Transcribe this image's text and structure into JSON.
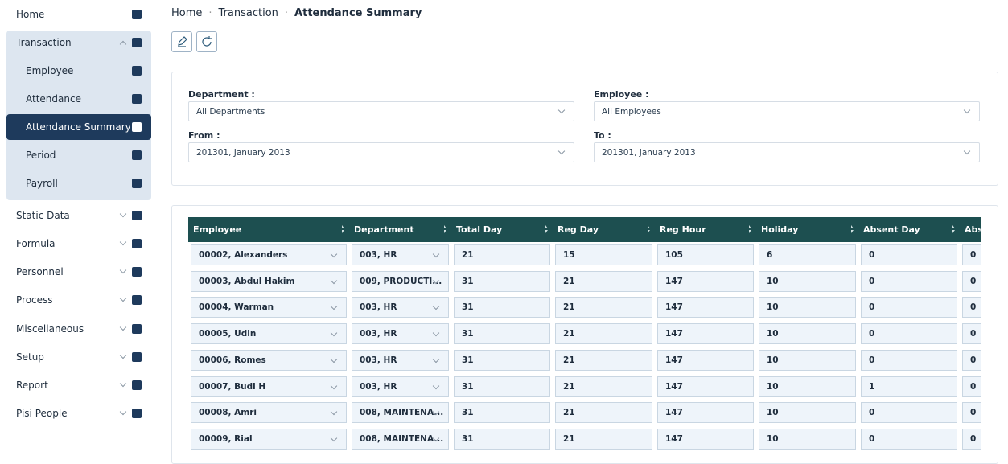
{
  "sidebar": {
    "items": [
      {
        "label": "Home"
      },
      {
        "label": "Transaction",
        "children": [
          {
            "label": "Employee"
          },
          {
            "label": "Attendance"
          },
          {
            "label": "Attendance Summary"
          },
          {
            "label": "Period"
          },
          {
            "label": "Payroll"
          }
        ]
      },
      {
        "label": "Static Data"
      },
      {
        "label": "Formula"
      },
      {
        "label": "Personnel"
      },
      {
        "label": "Process"
      },
      {
        "label": "Miscellaneous"
      },
      {
        "label": "Setup"
      },
      {
        "label": "Report"
      },
      {
        "label": "Pisi People"
      }
    ]
  },
  "breadcrumb": [
    "Home",
    "Transaction",
    "Attendance Summary"
  ],
  "filters": [
    {
      "label": "Department :",
      "value": "All Departments"
    },
    {
      "label": "Employee :",
      "value": "All Employees"
    },
    {
      "label": "From :",
      "value": "201301, January 2013"
    },
    {
      "label": "To :",
      "value": "201301, January 2013"
    }
  ],
  "table": {
    "columns": [
      "Employee",
      "Department",
      "Total Day",
      "Reg Day",
      "Reg Hour",
      "Holiday",
      "Absent Day",
      "Abs"
    ],
    "rows": [
      [
        "00002, Alexanders",
        "003, HR",
        21,
        15,
        105,
        6,
        0,
        0
      ],
      [
        "00003, Abdul Hakim",
        "009, PRODUCTI...",
        31,
        21,
        147,
        10,
        0,
        0
      ],
      [
        "00004, Warman",
        "003, HR",
        31,
        21,
        147,
        10,
        0,
        0
      ],
      [
        "00005, Udin",
        "003, HR",
        31,
        21,
        147,
        10,
        0,
        0
      ],
      [
        "00006, Romes",
        "003, HR",
        31,
        21,
        147,
        10,
        0,
        0
      ],
      [
        "00007, Budi H",
        "003, HR",
        31,
        21,
        147,
        10,
        1,
        0
      ],
      [
        "00008, Amri",
        "008, MAINTENA...",
        31,
        21,
        147,
        10,
        0,
        0
      ],
      [
        "00009, Rial",
        "008, MAINTENA...",
        31,
        21,
        147,
        10,
        0,
        0
      ]
    ]
  }
}
